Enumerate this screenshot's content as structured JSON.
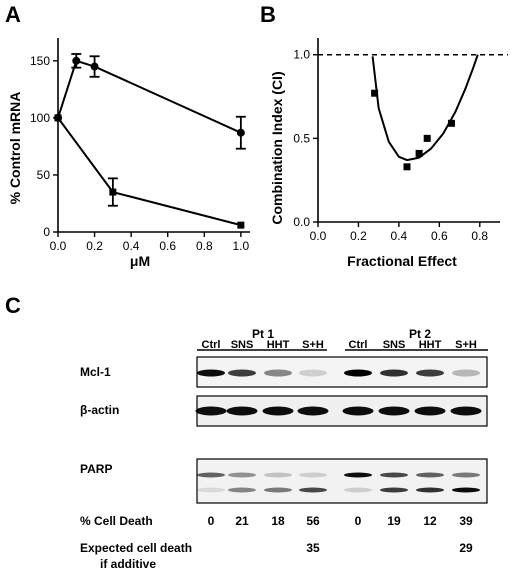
{
  "figure": {
    "panel_a": {
      "letter": "A",
      "chart_data": {
        "type": "line",
        "xlabel": "μM",
        "ylabel": "% Control mRNA",
        "xlim": [
          0,
          1.05
        ],
        "ylim": [
          0,
          170
        ],
        "xticks": [
          "0.0",
          "0.2",
          "0.4",
          "0.6",
          "0.8",
          "1.0"
        ],
        "yticks": [
          "0",
          "50",
          "100",
          "150"
        ],
        "series": [
          {
            "marker": "circle",
            "x": [
              0,
              0.1,
              0.2,
              1.0
            ],
            "y": [
              100,
              150,
              145,
              87
            ],
            "err": [
              0,
              6,
              9,
              14
            ]
          },
          {
            "marker": "square",
            "x": [
              0,
              0.3,
              1.0
            ],
            "y": [
              100,
              35,
              6
            ],
            "err": [
              0,
              12,
              0
            ]
          }
        ]
      }
    },
    "panel_b": {
      "letter": "B",
      "chart_data": {
        "type": "scatter",
        "xlabel": "Fractional Effect",
        "ylabel": "Combination Index (CI)",
        "xlim": [
          0,
          0.9
        ],
        "ylim": [
          0,
          1.1
        ],
        "xticks": [
          "0.0",
          "0.2",
          "0.4",
          "0.6",
          "0.8"
        ],
        "yticks": [
          "0.0",
          "0.5",
          "1.0"
        ],
        "reference_line": 1.0,
        "points": {
          "x": [
            0.28,
            0.44,
            0.5,
            0.54,
            0.66
          ],
          "y": [
            0.77,
            0.33,
            0.41,
            0.5,
            0.59
          ]
        },
        "fit": {
          "x": [
            0.27,
            0.3,
            0.35,
            0.4,
            0.44,
            0.5,
            0.56,
            0.62,
            0.68,
            0.73,
            0.77,
            0.79
          ],
          "y": [
            0.99,
            0.68,
            0.48,
            0.39,
            0.37,
            0.385,
            0.44,
            0.53,
            0.66,
            0.8,
            0.93,
            1.0
          ]
        }
      }
    },
    "panel_c": {
      "letter": "C",
      "patients": [
        "Pt 1",
        "Pt 2"
      ],
      "lanes": [
        "Ctrl",
        "SNS",
        "HHT",
        "S+H",
        "Ctrl",
        "SNS",
        "HHT",
        "S+H"
      ],
      "rows": [
        "Mcl-1",
        "β-actin",
        "PARP"
      ],
      "bands": {
        "mcl1": [
          0.95,
          0.75,
          0.45,
          0.15,
          1.0,
          0.8,
          0.75,
          0.25
        ],
        "actin": [
          0.95,
          0.95,
          0.95,
          0.95,
          0.95,
          0.95,
          0.95,
          0.95
        ],
        "parp_upper": [
          0.6,
          0.4,
          0.2,
          0.15,
          0.95,
          0.7,
          0.6,
          0.5
        ],
        "parp_lower": [
          0.1,
          0.45,
          0.5,
          0.7,
          0.15,
          0.75,
          0.8,
          0.95
        ]
      },
      "cell_death": {
        "label": "% Cell Death",
        "values": [
          "0",
          "21",
          "18",
          "56",
          "0",
          "19",
          "12",
          "39"
        ]
      },
      "expected": {
        "label_line1": "Expected cell death",
        "label_line2": "if additive",
        "values": [
          "",
          "",
          "",
          "35",
          "",
          "",
          "",
          "29"
        ]
      }
    }
  }
}
